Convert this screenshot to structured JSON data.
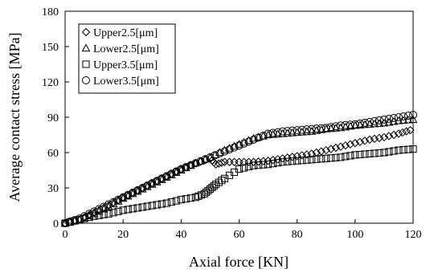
{
  "chart_data": {
    "type": "scatter",
    "xlabel": "Axial force [KN]",
    "ylabel": "Average contact stress [MPa]",
    "xlim": [
      0,
      120
    ],
    "ylim": [
      0,
      180
    ],
    "x_ticks": [
      "0",
      "20",
      "40",
      "60",
      "80",
      "100",
      "120"
    ],
    "y_ticks": [
      "0",
      "30",
      "60",
      "90",
      "120",
      "150",
      "180"
    ],
    "grid": false,
    "legend_position": "top-left",
    "series": [
      {
        "name": "Upper2.5[μm]",
        "marker": "diamond",
        "points": [
          [
            0,
            0
          ],
          [
            5,
            3
          ],
          [
            10,
            9
          ],
          [
            15,
            15
          ],
          [
            20,
            22
          ],
          [
            25,
            28
          ],
          [
            30,
            34
          ],
          [
            35,
            40
          ],
          [
            40,
            46
          ],
          [
            45,
            51
          ],
          [
            50,
            55
          ],
          [
            52,
            50
          ],
          [
            55,
            52
          ],
          [
            60,
            52
          ],
          [
            65,
            52
          ],
          [
            70,
            53
          ],
          [
            75,
            55
          ],
          [
            80,
            57
          ],
          [
            85,
            59
          ],
          [
            90,
            62
          ],
          [
            95,
            65
          ],
          [
            100,
            68
          ],
          [
            105,
            71
          ],
          [
            110,
            73
          ],
          [
            115,
            76
          ],
          [
            119,
            79
          ]
        ]
      },
      {
        "name": "Lower2.5[μm]",
        "marker": "triangle",
        "points": [
          [
            0,
            0
          ],
          [
            5,
            3
          ],
          [
            10,
            8
          ],
          [
            15,
            14
          ],
          [
            20,
            21
          ],
          [
            25,
            27
          ],
          [
            30,
            33
          ],
          [
            35,
            39
          ],
          [
            40,
            45
          ],
          [
            45,
            51
          ],
          [
            50,
            56
          ],
          [
            55,
            62
          ],
          [
            60,
            67
          ],
          [
            65,
            72
          ],
          [
            70,
            75
          ],
          [
            75,
            76
          ],
          [
            80,
            77
          ],
          [
            85,
            78
          ],
          [
            90,
            80
          ],
          [
            95,
            81
          ],
          [
            100,
            83
          ],
          [
            105,
            84
          ],
          [
            110,
            85
          ],
          [
            115,
            87
          ],
          [
            120,
            88
          ]
        ]
      },
      {
        "name": "Upper3.5[μm]",
        "marker": "square",
        "points": [
          [
            0,
            0
          ],
          [
            5,
            3
          ],
          [
            10,
            6
          ],
          [
            15,
            8
          ],
          [
            20,
            11
          ],
          [
            25,
            13
          ],
          [
            30,
            15
          ],
          [
            35,
            17
          ],
          [
            40,
            20
          ],
          [
            45,
            22
          ],
          [
            48,
            25
          ],
          [
            50,
            29
          ],
          [
            52,
            33
          ],
          [
            55,
            38
          ],
          [
            60,
            46
          ],
          [
            65,
            49
          ],
          [
            70,
            50
          ],
          [
            75,
            52
          ],
          [
            80,
            53
          ],
          [
            85,
            54
          ],
          [
            90,
            55
          ],
          [
            95,
            56
          ],
          [
            100,
            58
          ],
          [
            105,
            59
          ],
          [
            110,
            60
          ],
          [
            115,
            62
          ],
          [
            120,
            63
          ]
        ]
      },
      {
        "name": "Lower3.5[μm]",
        "marker": "circle",
        "points": [
          [
            0,
            0
          ],
          [
            5,
            4
          ],
          [
            10,
            10
          ],
          [
            15,
            16
          ],
          [
            20,
            22
          ],
          [
            25,
            28
          ],
          [
            30,
            34
          ],
          [
            35,
            40
          ],
          [
            40,
            46
          ],
          [
            45,
            51
          ],
          [
            50,
            56
          ],
          [
            55,
            61
          ],
          [
            60,
            66
          ],
          [
            65,
            71
          ],
          [
            70,
            76
          ],
          [
            75,
            78
          ],
          [
            80,
            79
          ],
          [
            85,
            80
          ],
          [
            90,
            81
          ],
          [
            95,
            83
          ],
          [
            100,
            84
          ],
          [
            105,
            86
          ],
          [
            110,
            88
          ],
          [
            115,
            90
          ],
          [
            120,
            92
          ]
        ]
      }
    ]
  }
}
